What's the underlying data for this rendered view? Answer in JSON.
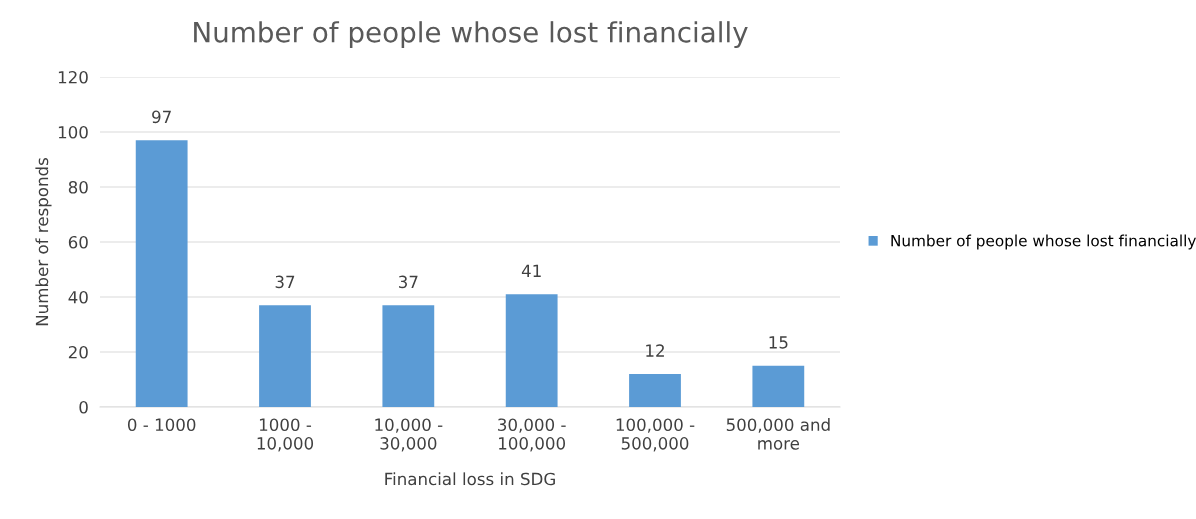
{
  "chart_data": {
    "type": "bar",
    "title": "Number of people whose lost financially",
    "xlabel": "Financial loss in SDG",
    "ylabel": "Number of responds",
    "categories": [
      "0 - 1000",
      "1000 -\n10,000",
      "10,000 -\n30,000",
      "30,000 -\n100,000",
      "100,000 -\n500,000",
      "500,000 and\nmore"
    ],
    "series": [
      {
        "name": "Number of people whose lost financially",
        "color": "#5b9bd5",
        "values": [
          97,
          37,
          37,
          41,
          12,
          15
        ]
      }
    ],
    "ylim": [
      0,
      120
    ],
    "yticks": [
      0,
      20,
      40,
      60,
      80,
      100,
      120
    ],
    "grid": "y",
    "legend": "right",
    "data_labels": true
  }
}
